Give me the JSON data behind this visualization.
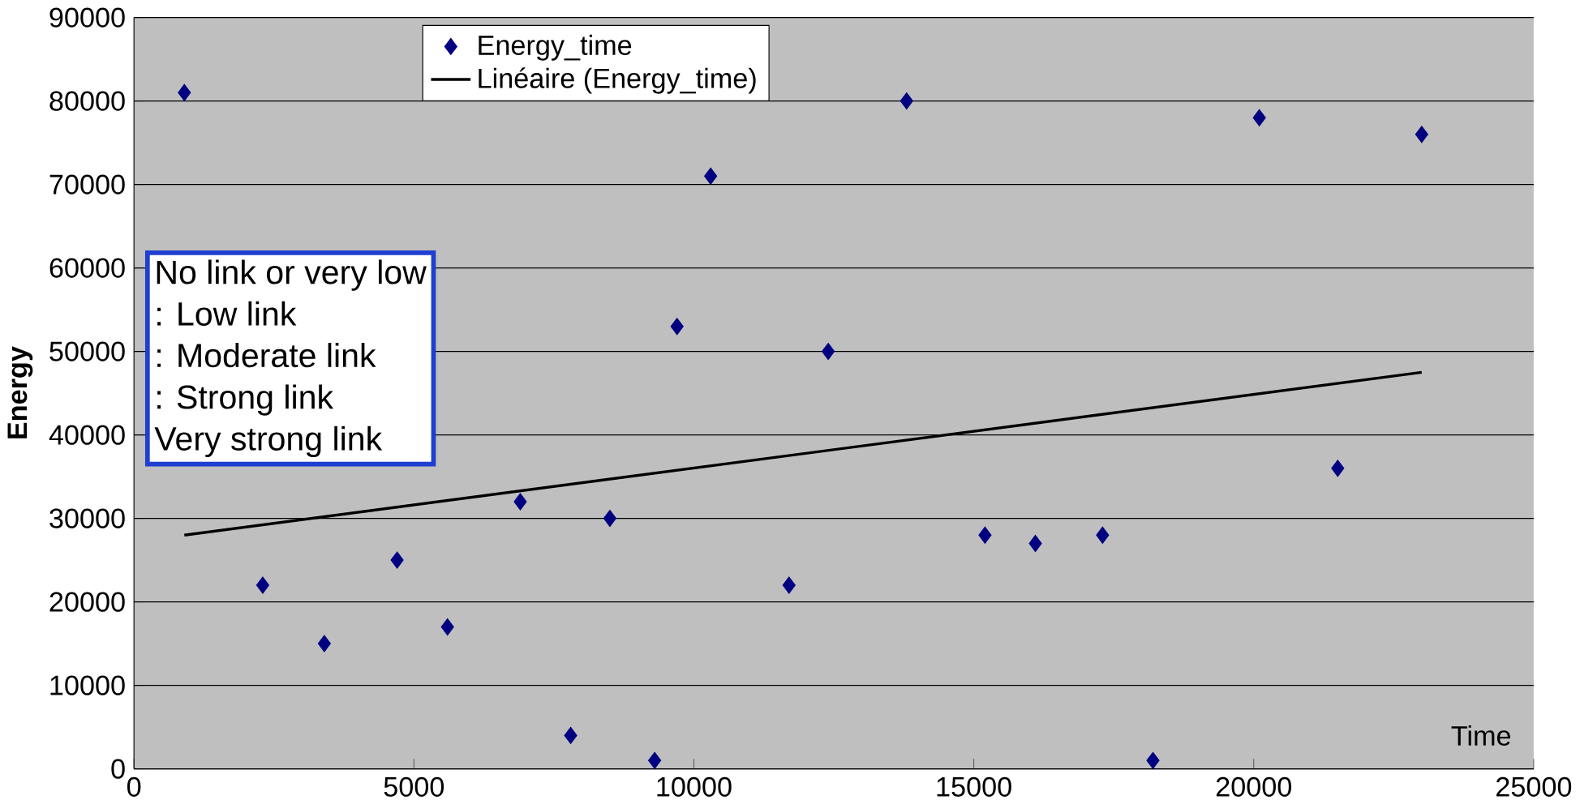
{
  "chart_data": {
    "type": "scatter",
    "xlabel": "Time",
    "ylabel": "Energy",
    "xlim": [
      0,
      25000
    ],
    "ylim": [
      0,
      90000
    ],
    "xticks": [
      0,
      5000,
      10000,
      15000,
      20000,
      25000
    ],
    "yticks": [
      0,
      10000,
      20000,
      30000,
      40000,
      50000,
      60000,
      70000,
      80000,
      90000
    ],
    "grid": "y",
    "legend": "top",
    "series": [
      {
        "name": "Energy_time",
        "color": "#000080",
        "marker": "diamond",
        "x": [
          900,
          2300,
          3400,
          4700,
          5600,
          6900,
          7800,
          8500,
          9300,
          9700,
          10300,
          11700,
          12400,
          13800,
          15200,
          16100,
          17300,
          18200,
          20100,
          21500,
          23000
        ],
        "values": [
          81000,
          22000,
          15000,
          25000,
          17000,
          32000,
          4000,
          30000,
          1000,
          53000,
          71000,
          22000,
          50000,
          80000,
          28000,
          27000,
          28000,
          1000,
          78000,
          36000,
          76000
        ]
      },
      {
        "name": "Linéaire (Energy_time)",
        "type": "line",
        "marker": "none",
        "color": "#000000",
        "x": [
          900,
          23000
        ],
        "values": [
          28000,
          47500
        ]
      }
    ],
    "annotations": [
      "No link or very low",
      ": Low link",
      ": Moderate link",
      ": Strong link",
      "Very strong link"
    ]
  }
}
